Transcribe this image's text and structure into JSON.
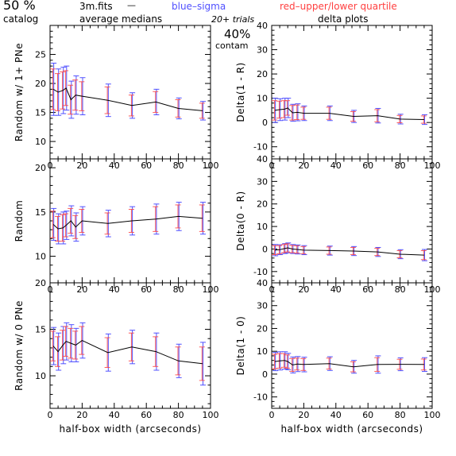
{
  "header": {
    "percent_left": "50 %",
    "catalog": "catalog",
    "file": "3m.fits",
    "dash": "—",
    "average_medians": "average medians",
    "blue_sigma": "blue–sigma",
    "red_quartile": "red–upper/lower quartile",
    "trials": "20+ trials",
    "percent_center": "40%",
    "contam": "contam",
    "delta_plots": "delta plots"
  },
  "colors": {
    "median_line": "#000000",
    "sigma": "#5050ff",
    "quartile": "#ff4040",
    "axis": "#000000"
  },
  "chart_data": [
    {
      "id": "p1",
      "type": "line",
      "title": "",
      "xlabel": "",
      "ylabel": "Random w/ 1+ PNe",
      "xlim": [
        0,
        100
      ],
      "ylim": [
        7,
        30
      ],
      "xticks": [
        "0",
        "20",
        "40",
        "60",
        "80",
        "100"
      ],
      "yticks": [
        10,
        15,
        20,
        25
      ],
      "x": [
        2,
        5,
        8,
        10,
        13,
        16,
        20,
        36,
        51,
        66,
        80,
        95
      ],
      "y": [
        19,
        18.5,
        18.8,
        19.2,
        17.2,
        18,
        17.8,
        17.1,
        16.2,
        16.8,
        15.7,
        15.3
      ],
      "sigma": [
        4.5,
        4,
        4,
        3.8,
        3.2,
        3.3,
        3.2,
        2.8,
        2.2,
        2.2,
        1.8,
        1.6
      ],
      "quartile": [
        3.5,
        3.2,
        3.2,
        3,
        2.5,
        2.6,
        2.5,
        2.3,
        1.8,
        1.8,
        1.5,
        1.3
      ]
    },
    {
      "id": "p2",
      "type": "line",
      "title": "",
      "xlabel": "",
      "ylabel": "Delta(1 - R)",
      "xlim": [
        0,
        100
      ],
      "ylim": [
        -15,
        40
      ],
      "xticks": [
        "0",
        "20",
        "40",
        "60",
        "80",
        "100"
      ],
      "yticks": [
        -10,
        0,
        10,
        20,
        30,
        40
      ],
      "x": [
        2,
        5,
        8,
        10,
        13,
        16,
        20,
        36,
        51,
        66,
        80,
        95
      ],
      "y": [
        5,
        5.3,
        5.5,
        6,
        4,
        4.2,
        3.8,
        3.8,
        2.5,
        2.8,
        1.4,
        1.2
      ],
      "sigma": [
        5,
        4.5,
        4.5,
        4,
        3.5,
        3.5,
        3,
        3,
        2.5,
        3,
        2,
        2
      ],
      "quartile": [
        4,
        3.5,
        3.5,
        3,
        3,
        3,
        2.5,
        2.5,
        2,
        2.5,
        1.5,
        1.5
      ]
    },
    {
      "id": "p3",
      "type": "line",
      "title": "",
      "xlabel": "",
      "ylabel": "Random",
      "xlim": [
        0,
        100
      ],
      "ylim": [
        7,
        21
      ],
      "xticks": [
        "0",
        "20",
        "40",
        "60",
        "80",
        "100"
      ],
      "yticks": [
        10,
        15,
        20
      ],
      "x": [
        2,
        5,
        8,
        10,
        13,
        16,
        20,
        36,
        51,
        66,
        80,
        95
      ],
      "y": [
        13.6,
        13.1,
        13.2,
        13.5,
        14,
        13.3,
        14,
        13.7,
        14,
        14.2,
        14.5,
        14.3
      ],
      "sigma": [
        1.8,
        1.7,
        1.8,
        1.6,
        1.7,
        1.6,
        1.6,
        1.5,
        1.6,
        1.7,
        1.6,
        1.8
      ],
      "quartile": [
        1.5,
        1.4,
        1.5,
        1.3,
        1.4,
        1.3,
        1.3,
        1.2,
        1.3,
        1.4,
        1.3,
        1.5
      ]
    },
    {
      "id": "p4",
      "type": "line",
      "title": "",
      "xlabel": "",
      "ylabel": "Delta(0 - R)",
      "xlim": [
        0,
        100
      ],
      "ylim": [
        -15,
        40
      ],
      "xticks": [
        "0",
        "20",
        "40",
        "60",
        "80",
        "100"
      ],
      "yticks": [
        -10,
        0,
        10,
        20,
        30,
        40
      ],
      "x": [
        2,
        5,
        8,
        10,
        13,
        16,
        20,
        36,
        51,
        66,
        80,
        95
      ],
      "y": [
        -0.5,
        -0.3,
        0.2,
        0.5,
        0,
        -0.2,
        -0.5,
        -0.7,
        -0.9,
        -1.3,
        -2.3,
        -2.7
      ],
      "sigma": [
        2.5,
        2.2,
        2.2,
        2.2,
        2,
        2,
        2,
        2,
        2,
        2,
        2,
        2.5
      ],
      "quartile": [
        2,
        1.8,
        1.8,
        1.8,
        1.6,
        1.6,
        1.6,
        1.6,
        1.6,
        1.6,
        1.6,
        2
      ]
    },
    {
      "id": "p5",
      "type": "line",
      "title": "",
      "xlabel": "half-box width (arcseconds)",
      "ylabel": "Random w/ 0 PNe",
      "xlim": [
        0,
        100
      ],
      "ylim": [
        6.5,
        20
      ],
      "xticks": [
        "0",
        "20",
        "40",
        "60",
        "80",
        "100"
      ],
      "yticks": [
        10,
        15,
        20
      ],
      "x": [
        2,
        5,
        8,
        10,
        13,
        16,
        20,
        36,
        51,
        66,
        80,
        95
      ],
      "y": [
        13.2,
        12.6,
        13.3,
        13.7,
        13.5,
        13.3,
        13.8,
        12.5,
        13.1,
        12.6,
        11.6,
        11.3
      ],
      "sigma": [
        2,
        2,
        2,
        2,
        2,
        1.8,
        1.9,
        2,
        1.8,
        2,
        1.8,
        2.3
      ],
      "quartile": [
        1.6,
        1.6,
        1.6,
        1.6,
        1.6,
        1.5,
        1.5,
        1.6,
        1.5,
        1.6,
        1.5,
        1.8
      ]
    },
    {
      "id": "p6",
      "type": "line",
      "title": "",
      "xlabel": "half-box width (arcseconds)",
      "ylabel": "Delta(1 - 0)",
      "xlim": [
        0,
        100
      ],
      "ylim": [
        -15,
        40
      ],
      "xticks": [
        "0",
        "20",
        "40",
        "60",
        "80",
        "100"
      ],
      "yticks": [
        -10,
        0,
        10,
        20,
        30,
        40
      ],
      "x": [
        2,
        5,
        8,
        10,
        13,
        16,
        20,
        36,
        51,
        66,
        80,
        95
      ],
      "y": [
        5.5,
        5.8,
        6,
        5.5,
        4,
        4.4,
        4.2,
        4.6,
        3.2,
        4.2,
        4.3,
        4.2
      ],
      "sigma": [
        4,
        4,
        3.8,
        3.6,
        3.5,
        3.3,
        3.2,
        3,
        2.8,
        3.8,
        2.8,
        3
      ],
      "quartile": [
        3.2,
        3.2,
        3,
        2.9,
        2.8,
        2.6,
        2.6,
        2.4,
        2.2,
        3,
        2.2,
        2.4
      ]
    }
  ]
}
